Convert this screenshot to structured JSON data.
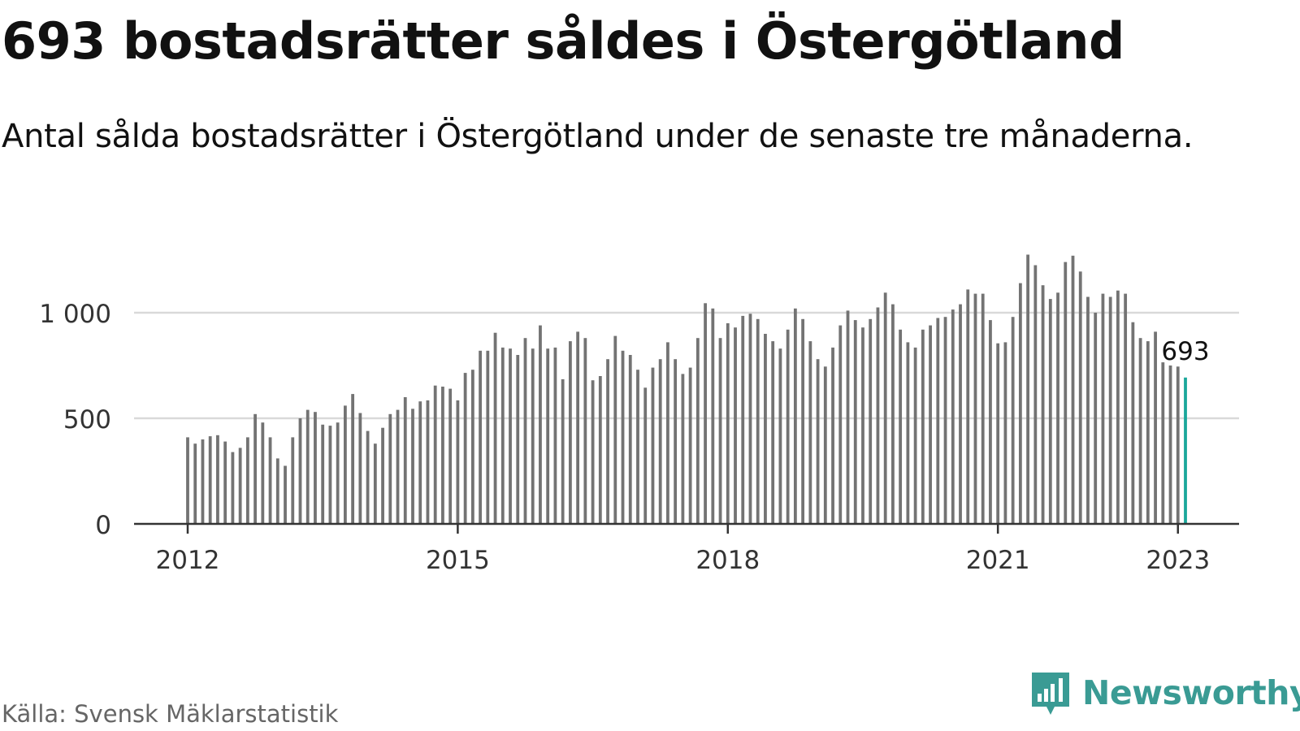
{
  "header": {
    "title": "693 bostadsrätter såldes i Östergötland",
    "subtitle": "Antal sålda bostadsrätter i Östergötland under de senaste tre månaderna."
  },
  "footer": {
    "source": "Källa: Svensk Mäklarstatistik",
    "brand": "Newsworthy"
  },
  "colors": {
    "bar": "#737373",
    "highlight": "#1aa79b",
    "grid": "#d9d9d9",
    "axis": "#333333",
    "brand": "#3a9b94"
  },
  "chart_data": {
    "type": "bar",
    "title": "693 bostadsrätter såldes i Östergötland",
    "subtitle": "Antal sålda bostadsrätter i Östergötland under de senaste tre månaderna.",
    "x_start": "2012-01",
    "x_ticks": [
      "2012",
      "2015",
      "2018",
      "2021",
      "2023"
    ],
    "y_ticks": [
      0,
      500,
      1000
    ],
    "y_tick_labels": [
      "0",
      "500",
      "1 000"
    ],
    "ylim": [
      0,
      1300
    ],
    "grid": true,
    "highlight": {
      "label": "693",
      "value": 693
    },
    "values": [
      410,
      380,
      400,
      415,
      420,
      390,
      340,
      360,
      410,
      520,
      480,
      410,
      310,
      275,
      410,
      500,
      540,
      530,
      470,
      465,
      480,
      560,
      615,
      525,
      440,
      380,
      455,
      520,
      540,
      600,
      545,
      580,
      585,
      655,
      650,
      640,
      585,
      715,
      730,
      820,
      820,
      905,
      835,
      830,
      800,
      880,
      830,
      940,
      830,
      835,
      685,
      865,
      910,
      880,
      680,
      700,
      780,
      890,
      820,
      800,
      730,
      645,
      740,
      780,
      860,
      780,
      710,
      740,
      880,
      1045,
      1020,
      880,
      950,
      930,
      985,
      995,
      970,
      900,
      865,
      830,
      920,
      1020,
      970,
      865,
      780,
      745,
      835,
      940,
      1010,
      965,
      930,
      970,
      1025,
      1095,
      1040,
      920,
      860,
      835,
      920,
      940,
      975,
      980,
      1015,
      1040,
      1110,
      1090,
      1090,
      965,
      855,
      860,
      980,
      1140,
      1275,
      1225,
      1130,
      1065,
      1095,
      1240,
      1270,
      1195,
      1075,
      1000,
      1090,
      1075,
      1105,
      1090,
      955,
      880,
      865,
      910,
      765,
      750,
      745,
      693
    ]
  }
}
